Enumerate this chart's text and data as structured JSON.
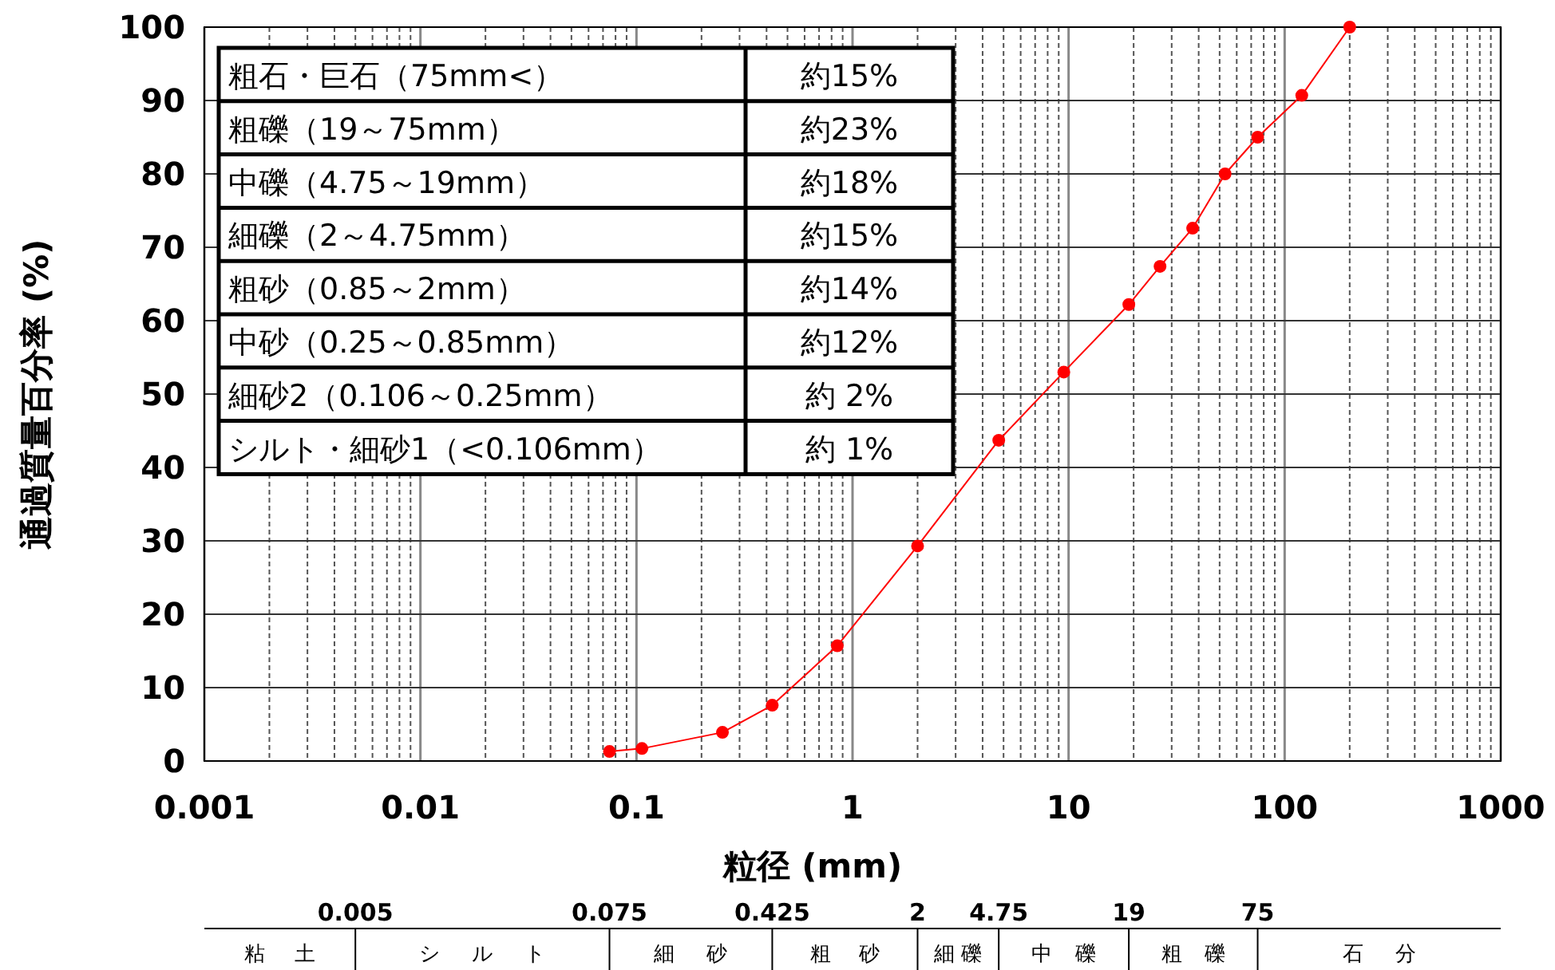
{
  "chart_data": [
    {
      "type": "line",
      "xlabel": "粒径 (mm)",
      "ylabel": "通過質量百分率 (%)",
      "log": "x",
      "grid": true,
      "marker": "circle",
      "xlim": [
        0.001,
        1000
      ],
      "ylim": [
        0,
        100
      ],
      "xticks": [
        0.001,
        0.01,
        0.1,
        1,
        10,
        100,
        1000
      ],
      "yticks": [
        0,
        10,
        20,
        30,
        40,
        50,
        60,
        70,
        80,
        90,
        100
      ],
      "series": [
        {
          "color": "#ff0000",
          "x": [
            0.075,
            0.106,
            0.25,
            0.425,
            0.85,
            2,
            4.75,
            9.5,
            19,
            26.5,
            37.5,
            53,
            75,
            120,
            200
          ],
          "values": [
            1.3,
            1.7,
            3.9,
            7.6,
            15.7,
            29.3,
            43.7,
            53,
            62.2,
            67.4,
            72.6,
            80,
            85,
            90.7,
            100
          ]
        }
      ],
      "annotations": [
        "粗石・巨石（75mm<）",
        "約15%",
        "粗礫（19～75mm）",
        "約23%",
        "中礫（4.75～19mm）",
        "約18%",
        "細礫（2～4.75mm）",
        "約15%",
        "粗砂（0.85～2mm）",
        "約14%",
        "中砂（0.25～0.85mm）",
        "約12%",
        "細砂2（0.106～0.25mm）",
        "約 2%",
        "シルト・細砂1（<0.106mm）",
        "約 1%"
      ]
    },
    {
      "type": "other",
      "annotations": [
        "0.005",
        "0.075",
        "0.425",
        "2",
        "4.75",
        "19",
        "75"
      ],
      "categories": [
        "粘土",
        "シルト",
        "細砂",
        "粗砂",
        "細礫",
        "中礫",
        "粗礫",
        "石分"
      ]
    }
  ]
}
